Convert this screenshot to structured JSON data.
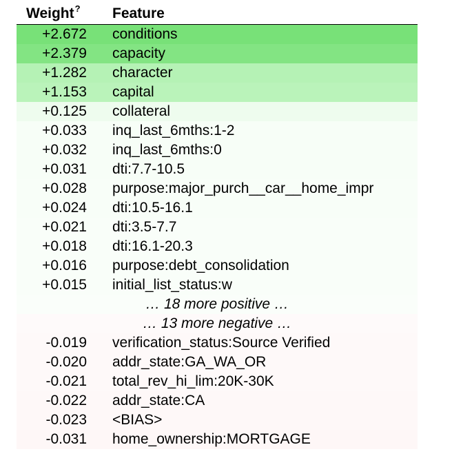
{
  "header": {
    "weight_label": "Weight",
    "weight_help_marker": "?",
    "feature_label": "Feature"
  },
  "positive_rows": [
    {
      "weight": "+2.672",
      "feature": "conditions",
      "color": "#78e178"
    },
    {
      "weight": "+2.379",
      "feature": "capacity",
      "color": "#83e483"
    },
    {
      "weight": "+1.282",
      "feature": "character",
      "color": "#b5f2b5"
    },
    {
      "weight": "+1.153",
      "feature": "capital",
      "color": "#baf3ba"
    },
    {
      "weight": "+0.125",
      "feature": "collateral",
      "color": "#eefcee"
    },
    {
      "weight": "+0.033",
      "feature": "inq_last_6mths:1-2",
      "color": "#f7fef7"
    },
    {
      "weight": "+0.032",
      "feature": "inq_last_6mths:0",
      "color": "#f7fef7"
    },
    {
      "weight": "+0.031",
      "feature": "dti:7.7-10.5",
      "color": "#f7fef7"
    },
    {
      "weight": "+0.028",
      "feature": "purpose:major_purch__car__home_impr",
      "color": "#f8fef8"
    },
    {
      "weight": "+0.024",
      "feature": "dti:10.5-16.1",
      "color": "#f8fef8"
    },
    {
      "weight": "+0.021",
      "feature": "dti:3.5-7.7",
      "color": "#f9fef9"
    },
    {
      "weight": "+0.018",
      "feature": "dti:16.1-20.3",
      "color": "#f9fef9"
    },
    {
      "weight": "+0.016",
      "feature": "purpose:debt_consolidation",
      "color": "#f9fef9"
    },
    {
      "weight": "+0.015",
      "feature": "initial_list_status:w",
      "color": "#f9fef9"
    }
  ],
  "more_positive": {
    "text": "… 18 more positive …",
    "color": "#fafefa"
  },
  "more_negative": {
    "text": "… 13 more negative …",
    "color": "#fefafa"
  },
  "negative_rows": [
    {
      "weight": "-0.019",
      "feature": "verification_status:Source Verified",
      "color": "#fef9f9"
    },
    {
      "weight": "-0.020",
      "feature": "addr_state:GA_WA_OR",
      "color": "#fef9f9"
    },
    {
      "weight": "-0.021",
      "feature": "total_rev_hi_lim:20K-30K",
      "color": "#fef9f9"
    },
    {
      "weight": "-0.022",
      "feature": "addr_state:CA",
      "color": "#fef8f8"
    },
    {
      "weight": "-0.023",
      "feature": "<BIAS>",
      "color": "#fef8f8"
    },
    {
      "weight": "-0.031",
      "feature": "home_ownership:MORTGAGE",
      "color": "#fef7f7"
    }
  ]
}
